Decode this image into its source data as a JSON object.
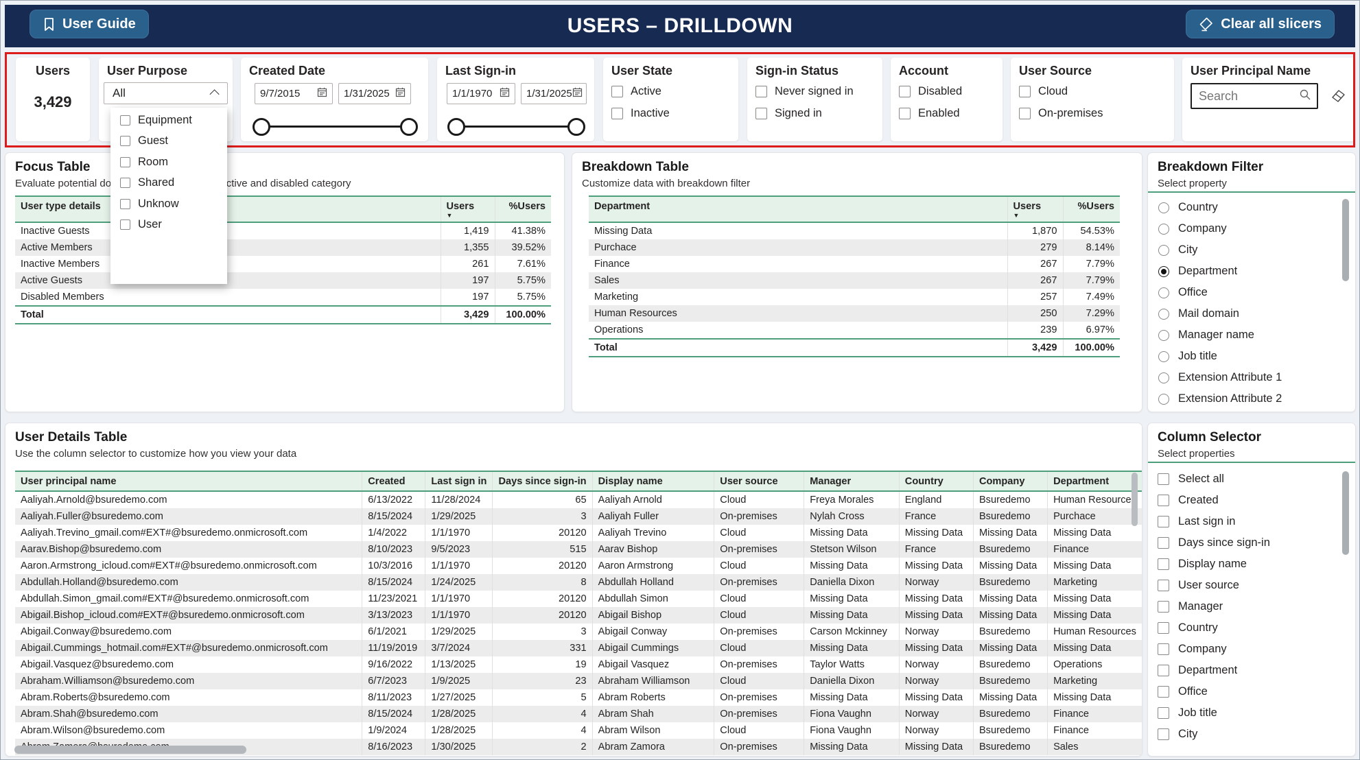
{
  "header": {
    "title": "USERS – DRILLDOWN",
    "user_guide_label": "User Guide",
    "clear_slicers_label": "Clear all slicers"
  },
  "icons": {
    "user_guide": "bookmark-icon",
    "clear_slicers": "eraser-icon",
    "search": "magnifier-icon",
    "date": "calendar-icon",
    "dropdown": "chevron-up-icon",
    "sort": "sort-descending-icon"
  },
  "colors": {
    "header_navy": "#172a52",
    "button_blue": "#2a608c",
    "slicer_outline_red": "#de1b1b",
    "table_green_border": "#4d9f7c",
    "table_green_header": "#e4f2e9",
    "row_stripe": "#ececec"
  },
  "slicers": {
    "users_card": {
      "title": "Users",
      "value": "3,429"
    },
    "user_purpose": {
      "title": "User Purpose",
      "selected": "All",
      "options": [
        "Equipment",
        "Guest",
        "Room",
        "Shared",
        "Unknow",
        "User"
      ]
    },
    "created_date": {
      "title": "Created Date",
      "start": "9/7/2015",
      "end": "1/31/2025"
    },
    "last_sign_in": {
      "title": "Last Sign-in",
      "start": "1/1/1970",
      "end": "1/31/2025"
    },
    "user_state": {
      "title": "User State",
      "options": [
        "Active",
        "Inactive"
      ]
    },
    "sign_in_status": {
      "title": "Sign-in Status",
      "options": [
        "Never signed in",
        "Signed in"
      ]
    },
    "account": {
      "title": "Account",
      "options": [
        "Disabled",
        "Enabled"
      ]
    },
    "user_source": {
      "title": "User Source",
      "options": [
        "Cloud",
        "On-premises"
      ]
    },
    "user_principal_name": {
      "title": "User Principal Name",
      "placeholder": "Search"
    }
  },
  "focus_table": {
    "title": "Focus Table",
    "subtitle": "Evaluate potential dormant accounts in the inactive and disabled category",
    "columns": [
      "User type details",
      "Users",
      "%Users"
    ],
    "rows": [
      [
        "Inactive Guests",
        "1,419",
        "41.38%"
      ],
      [
        "Active Members",
        "1,355",
        "39.52%"
      ],
      [
        "Inactive Members",
        "261",
        "7.61%"
      ],
      [
        "Active Guests",
        "197",
        "5.75%"
      ],
      [
        "Disabled Members",
        "197",
        "5.75%"
      ]
    ],
    "total": [
      "Total",
      "3,429",
      "100.00%"
    ]
  },
  "breakdown_table": {
    "title": "Breakdown Table",
    "subtitle": "Customize data with breakdown filter",
    "columns": [
      "Department",
      "Users",
      "%Users"
    ],
    "rows": [
      [
        "Missing Data",
        "1,870",
        "54.53%"
      ],
      [
        "Purchace",
        "279",
        "8.14%"
      ],
      [
        "Finance",
        "267",
        "7.79%"
      ],
      [
        "Sales",
        "267",
        "7.79%"
      ],
      [
        "Marketing",
        "257",
        "7.49%"
      ],
      [
        "Human Resources",
        "250",
        "7.29%"
      ],
      [
        "Operations",
        "239",
        "6.97%"
      ]
    ],
    "total": [
      "Total",
      "3,429",
      "100.00%"
    ]
  },
  "breakdown_filter": {
    "title": "Breakdown Filter",
    "subtitle": "Select property",
    "selected": "Department",
    "options": [
      "Country",
      "Company",
      "City",
      "Department",
      "Office",
      "Mail domain",
      "Manager name",
      "Job title",
      "Extension Attribute 1",
      "Extension Attribute 2"
    ]
  },
  "user_details_table": {
    "title": "User Details Table",
    "subtitle": "Use the column selector to customize how you view your data",
    "columns": [
      "User principal name",
      "Created",
      "Last sign in",
      "Days since sign-in",
      "Display name",
      "User source",
      "Manager",
      "Country",
      "Company",
      "Department"
    ],
    "rows": [
      [
        "Aaliyah.Arnold@bsuredemo.com",
        "6/13/2022",
        "11/28/2024",
        "65",
        "Aaliyah Arnold",
        "Cloud",
        "Freya Morales",
        "England",
        "Bsuredemo",
        "Human Resources"
      ],
      [
        "Aaliyah.Fuller@bsuredemo.com",
        "8/15/2024",
        "1/29/2025",
        "3",
        "Aaliyah Fuller",
        "On-premises",
        "Nylah Cross",
        "France",
        "Bsuredemo",
        "Purchace"
      ],
      [
        "Aaliyah.Trevino_gmail.com#EXT#@bsuredemo.onmicrosoft.com",
        "1/4/2022",
        "1/1/1970",
        "20120",
        "Aaliyah Trevino",
        "Cloud",
        "Missing Data",
        "Missing Data",
        "Missing Data",
        "Missing Data"
      ],
      [
        "Aarav.Bishop@bsuredemo.com",
        "8/10/2023",
        "9/5/2023",
        "515",
        "Aarav Bishop",
        "On-premises",
        "Stetson Wilson",
        "France",
        "Bsuredemo",
        "Finance"
      ],
      [
        "Aaron.Armstrong_icloud.com#EXT#@bsuredemo.onmicrosoft.com",
        "10/3/2016",
        "1/1/1970",
        "20120",
        "Aaron Armstrong",
        "Cloud",
        "Missing Data",
        "Missing Data",
        "Missing Data",
        "Missing Data"
      ],
      [
        "Abdullah.Holland@bsuredemo.com",
        "8/15/2024",
        "1/24/2025",
        "8",
        "Abdullah Holland",
        "On-premises",
        "Daniella Dixon",
        "Norway",
        "Bsuredemo",
        "Marketing"
      ],
      [
        "Abdullah.Simon_gmail.com#EXT#@bsuredemo.onmicrosoft.com",
        "11/23/2021",
        "1/1/1970",
        "20120",
        "Abdullah Simon",
        "Cloud",
        "Missing Data",
        "Missing Data",
        "Missing Data",
        "Missing Data"
      ],
      [
        "Abigail.Bishop_icloud.com#EXT#@bsuredemo.onmicrosoft.com",
        "3/13/2023",
        "1/1/1970",
        "20120",
        "Abigail Bishop",
        "Cloud",
        "Missing Data",
        "Missing Data",
        "Missing Data",
        "Missing Data"
      ],
      [
        "Abigail.Conway@bsuredemo.com",
        "6/1/2021",
        "1/29/2025",
        "3",
        "Abigail Conway",
        "On-premises",
        "Carson Mckinney",
        "Norway",
        "Bsuredemo",
        "Human Resources"
      ],
      [
        "Abigail.Cummings_hotmail.com#EXT#@bsuredemo.onmicrosoft.com",
        "11/19/2019",
        "3/7/2024",
        "331",
        "Abigail Cummings",
        "Cloud",
        "Missing Data",
        "Missing Data",
        "Missing Data",
        "Missing Data"
      ],
      [
        "Abigail.Vasquez@bsuredemo.com",
        "9/16/2022",
        "1/13/2025",
        "19",
        "Abigail Vasquez",
        "On-premises",
        "Taylor Watts",
        "Norway",
        "Bsuredemo",
        "Operations"
      ],
      [
        "Abraham.Williamson@bsuredemo.com",
        "6/7/2023",
        "1/9/2025",
        "23",
        "Abraham Williamson",
        "Cloud",
        "Daniella Dixon",
        "Norway",
        "Bsuredemo",
        "Marketing"
      ],
      [
        "Abram.Roberts@bsuredemo.com",
        "8/11/2023",
        "1/27/2025",
        "5",
        "Abram Roberts",
        "On-premises",
        "Missing Data",
        "Missing Data",
        "Missing Data",
        "Missing Data"
      ],
      [
        "Abram.Shah@bsuredemo.com",
        "8/15/2024",
        "1/28/2025",
        "4",
        "Abram Shah",
        "On-premises",
        "Fiona Vaughn",
        "Norway",
        "Bsuredemo",
        "Finance"
      ],
      [
        "Abram.Wilson@bsuredemo.com",
        "1/9/2024",
        "1/28/2025",
        "4",
        "Abram Wilson",
        "Cloud",
        "Fiona Vaughn",
        "Norway",
        "Bsuredemo",
        "Finance"
      ],
      [
        "Abram.Zamora@bsuredemo.com",
        "8/16/2023",
        "1/30/2025",
        "2",
        "Abram Zamora",
        "On-premises",
        "Missing Data",
        "Missing Data",
        "Bsuredemo",
        "Sales"
      ]
    ]
  },
  "column_selector": {
    "title": "Column Selector",
    "subtitle": "Select properties",
    "options": [
      "Select all",
      "Created",
      "Last sign in",
      "Days since sign-in",
      "Display name",
      "User source",
      "Manager",
      "Country",
      "Company",
      "Department",
      "Office",
      "Job title",
      "City"
    ]
  }
}
